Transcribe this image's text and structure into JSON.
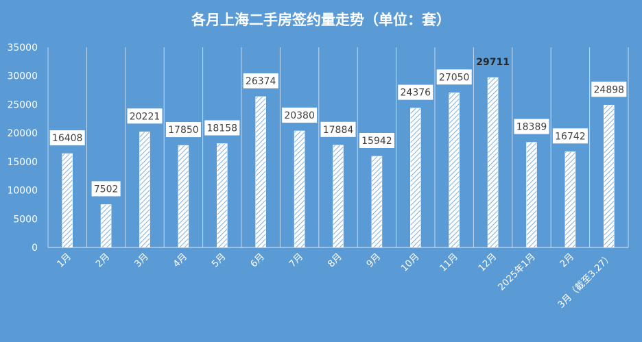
{
  "chart_data": {
    "type": "bar",
    "title": "各月上海二手房签约量走势（单位：套）",
    "categories": [
      "1月",
      "2月",
      "3月",
      "4月",
      "5月",
      "6月",
      "7月",
      "8月",
      "9月",
      "10月",
      "11月",
      "12月",
      "2025年1月",
      "2月",
      "3月（截至3.27）"
    ],
    "values": [
      16408,
      7502,
      20221,
      17850,
      18158,
      26374,
      20380,
      17884,
      15942,
      24376,
      27050,
      29711,
      18389,
      16742,
      24898
    ],
    "value_labels": [
      "16408",
      "7502",
      "20221",
      "17850",
      "18158",
      "26374",
      "20380",
      "17884",
      "15942",
      "24376",
      "27050",
      "29711",
      "18389",
      "16742",
      "24898"
    ],
    "highlight_index": 11,
    "ylim": [
      0,
      35000
    ],
    "yticks": [
      "0",
      "5000",
      "10000",
      "15000",
      "20000",
      "25000",
      "30000",
      "35000"
    ],
    "grid": "vertical",
    "legend": "none",
    "colors": {
      "background": "#5b9bd5",
      "bar_fill": "#ffffff",
      "bar_hatch": "#5b9bd5",
      "label_box": "#ffffff",
      "label_text": "#404040"
    }
  }
}
